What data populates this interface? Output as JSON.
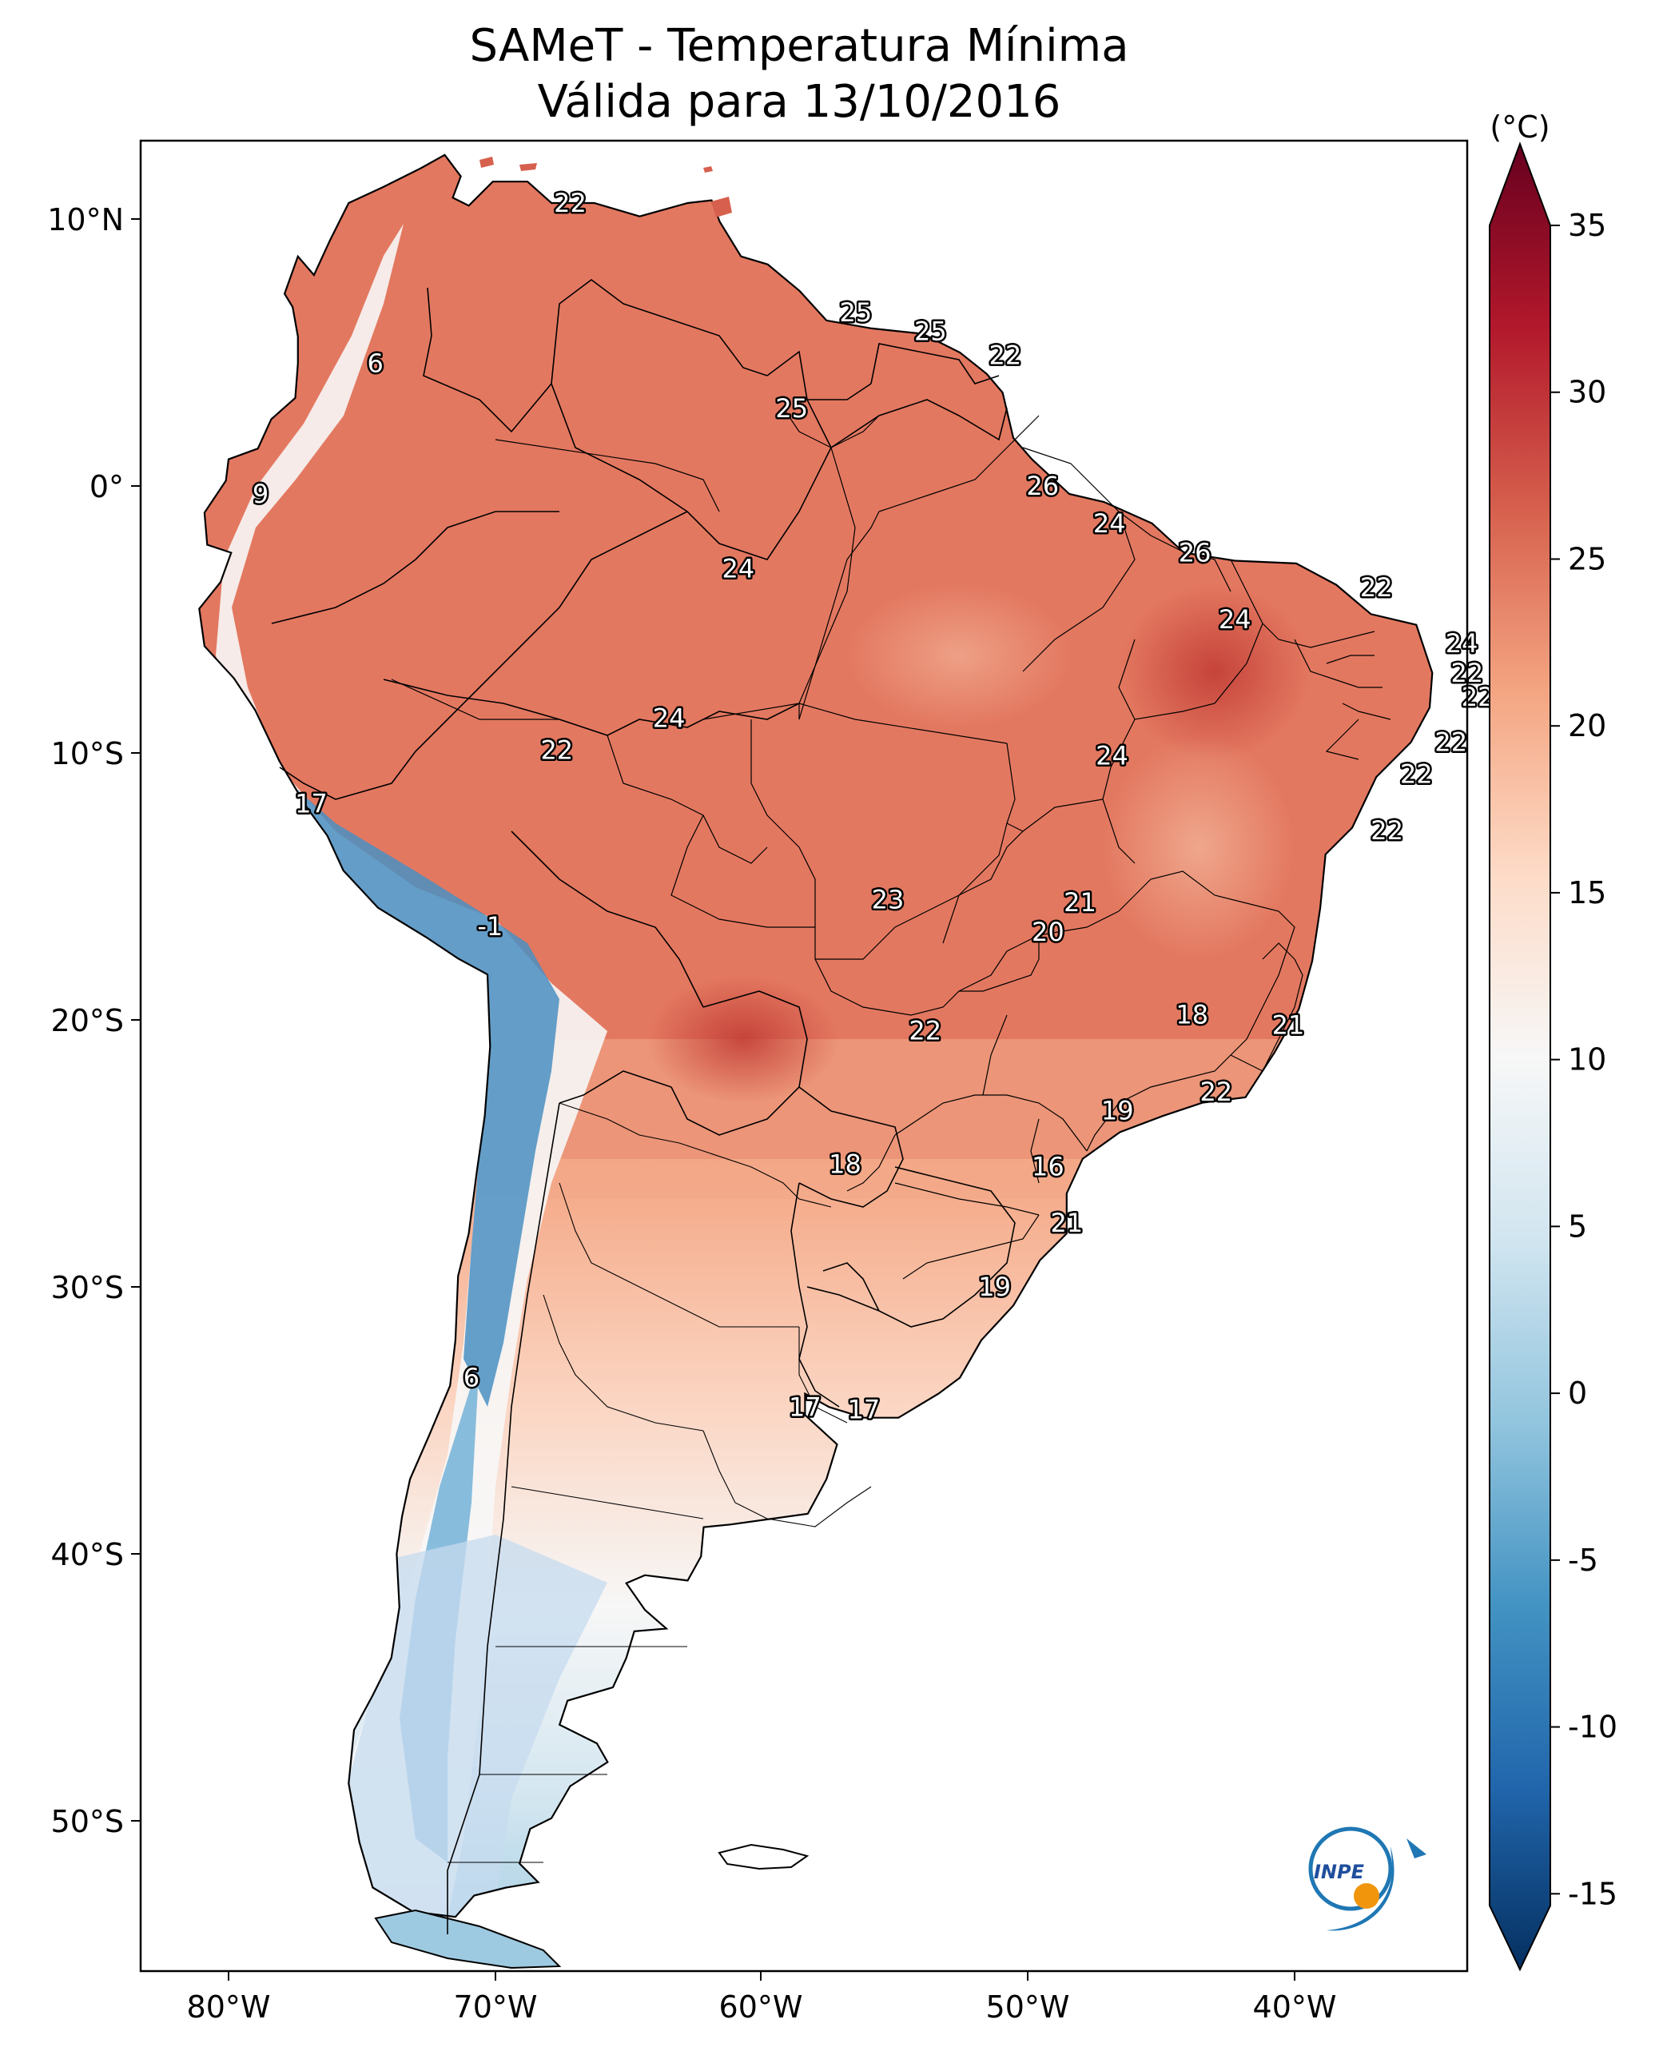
{
  "title": {
    "line1": "SAMeT - Temperatura Mínima",
    "line2": "Válida para 13/10/2016"
  },
  "axes": {
    "lon_ticks": [
      "80°W",
      "70°W",
      "60°W",
      "50°W",
      "40°W"
    ],
    "lat_ticks": [
      "10°N",
      "0°",
      "10°S",
      "20°S",
      "30°S",
      "40°S",
      "50°S"
    ]
  },
  "colorbar": {
    "unit": "(°C)",
    "ticks": [
      "35",
      "30",
      "25",
      "20",
      "15",
      "10",
      "5",
      "0",
      "-5",
      "-10",
      "-15"
    ],
    "range": [
      -15,
      35
    ],
    "colors": [
      "#053061",
      "#2166ac",
      "#4393c3",
      "#92c5de",
      "#d1e5f0",
      "#f7f7f7",
      "#fddbc7",
      "#f4a582",
      "#d6604d",
      "#b2182b",
      "#67001f"
    ]
  },
  "map_labels": [
    {
      "value": "22",
      "lon": -67.2,
      "lat": 10.6
    },
    {
      "value": "6",
      "lon": -74.5,
      "lat": 4.6
    },
    {
      "value": "25",
      "lon": -56.5,
      "lat": 6.5
    },
    {
      "value": "25",
      "lon": -53.7,
      "lat": 5.8
    },
    {
      "value": "22",
      "lon": -50.9,
      "lat": 4.9
    },
    {
      "value": "25",
      "lon": -58.9,
      "lat": 2.9
    },
    {
      "value": "9",
      "lon": -78.8,
      "lat": -0.3
    },
    {
      "value": "26",
      "lon": -49.5,
      "lat": 0.0
    },
    {
      "value": "24",
      "lon": -47.0,
      "lat": -1.4
    },
    {
      "value": "26",
      "lon": -43.8,
      "lat": -2.5
    },
    {
      "value": "24",
      "lon": -60.9,
      "lat": -3.1
    },
    {
      "value": "22",
      "lon": -37.0,
      "lat": -3.8
    },
    {
      "value": "24",
      "lon": -42.3,
      "lat": -5.0
    },
    {
      "value": "24",
      "lon": -33.8,
      "lat": -5.9
    },
    {
      "value": "22",
      "lon": -33.6,
      "lat": -7.0
    },
    {
      "value": "22",
      "lon": -33.2,
      "lat": -7.9
    },
    {
      "value": "24",
      "lon": -63.5,
      "lat": -8.7
    },
    {
      "value": "22",
      "lon": -34.2,
      "lat": -9.6
    },
    {
      "value": "22",
      "lon": -67.7,
      "lat": -9.9
    },
    {
      "value": "24",
      "lon": -46.9,
      "lat": -10.1
    },
    {
      "value": "22",
      "lon": -35.5,
      "lat": -10.8
    },
    {
      "value": "17",
      "lon": -76.9,
      "lat": -11.9
    },
    {
      "value": "22",
      "lon": -36.6,
      "lat": -12.9
    },
    {
      "value": "23",
      "lon": -55.3,
      "lat": -15.5
    },
    {
      "value": "21",
      "lon": -48.1,
      "lat": -15.6
    },
    {
      "value": "-1",
      "lon": -70.2,
      "lat": -16.5
    },
    {
      "value": "20",
      "lon": -49.3,
      "lat": -16.7
    },
    {
      "value": "18",
      "lon": -43.9,
      "lat": -19.8
    },
    {
      "value": "21",
      "lon": -40.3,
      "lat": -20.2
    },
    {
      "value": "22",
      "lon": -53.9,
      "lat": -20.4
    },
    {
      "value": "22",
      "lon": -43.0,
      "lat": -22.7
    },
    {
      "value": "19",
      "lon": -46.7,
      "lat": -23.4
    },
    {
      "value": "18",
      "lon": -56.9,
      "lat": -25.4
    },
    {
      "value": "16",
      "lon": -49.3,
      "lat": -25.5
    },
    {
      "value": "21",
      "lon": -48.6,
      "lat": -27.6
    },
    {
      "value": "19",
      "lon": -51.3,
      "lat": -30.0
    },
    {
      "value": "6",
      "lon": -70.9,
      "lat": -33.4
    },
    {
      "value": "17",
      "lon": -58.4,
      "lat": -34.5
    },
    {
      "value": "17",
      "lon": -56.2,
      "lat": -34.6
    }
  ],
  "logo": {
    "text": "INPE"
  }
}
